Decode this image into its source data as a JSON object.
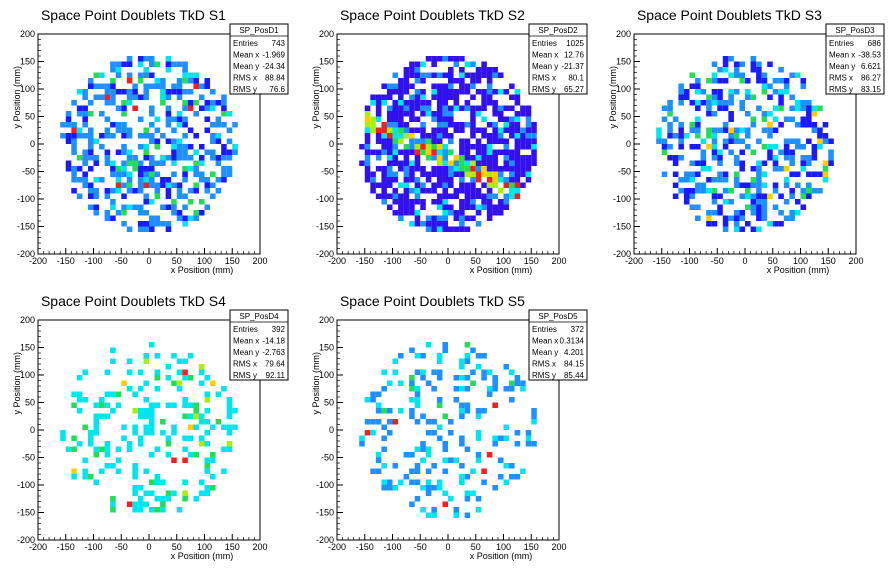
{
  "chart_data": [
    {
      "type": "heatmap",
      "title": "Space Point Doublets TkD S1",
      "xlabel": "x Position (mm)",
      "ylabel": "y Position (mm)",
      "xlim": [
        -200,
        200
      ],
      "ylim": [
        -200,
        200
      ],
      "xticks": [
        -200,
        -150,
        -100,
        -50,
        0,
        50,
        100,
        150,
        200
      ],
      "yticks": [
        -200,
        -150,
        -100,
        -50,
        0,
        50,
        100,
        150,
        200
      ],
      "grid": false,
      "colors": [
        "#1a1aff",
        "#1e90ff",
        "#00e5ee",
        "#22dd55",
        "#aaee11",
        "#ffcc00",
        "#ee2222"
      ],
      "stats": {
        "name": "SP_PosD1",
        "rows": [
          [
            "Entries",
            "743"
          ],
          [
            "Mean x",
            "-1.969"
          ],
          [
            "Mean y",
            "-24.34"
          ],
          [
            "RMS x",
            "88.84"
          ],
          [
            "RMS y",
            "76.6"
          ]
        ]
      },
      "region": {
        "shape": "disk",
        "radius": 160
      },
      "bin_size": 10,
      "band": null,
      "entries": 743,
      "palette": "blue"
    },
    {
      "type": "heatmap",
      "title": "Space Point Doublets TkD S2",
      "xlabel": "x Position (mm)",
      "ylabel": "y Position (mm)",
      "xlim": [
        -200,
        200
      ],
      "ylim": [
        -200,
        200
      ],
      "xticks": [
        -200,
        -150,
        -100,
        -50,
        0,
        50,
        100,
        150,
        200
      ],
      "yticks": [
        -200,
        -150,
        -100,
        -50,
        0,
        50,
        100,
        150,
        200
      ],
      "grid": false,
      "colors": [
        "#3311ee",
        "#1e90ff",
        "#00e5ee",
        "#22dd55",
        "#aaee11",
        "#ffcc00",
        "#ee2222"
      ],
      "stats": {
        "name": "SP_PosD2",
        "rows": [
          [
            "Entries",
            "1025"
          ],
          [
            "Mean x",
            "12.76"
          ],
          [
            "Mean y",
            "-21.37"
          ],
          [
            "RMS x",
            "80.1"
          ],
          [
            "RMS y",
            "65.27"
          ]
        ]
      },
      "region": {
        "shape": "disk",
        "radius": 160
      },
      "bin_size": 10,
      "band": {
        "from": [
          -150,
          45
        ],
        "to": [
          130,
          -90
        ]
      },
      "entries": 1025,
      "palette": "violet"
    },
    {
      "type": "heatmap",
      "title": "Space Point Doublets TkD S3",
      "xlabel": "x Position (mm)",
      "ylabel": "y Position (mm)",
      "xlim": [
        -200,
        200
      ],
      "ylim": [
        -200,
        200
      ],
      "xticks": [
        -200,
        -150,
        -100,
        -50,
        0,
        50,
        100,
        150,
        200
      ],
      "yticks": [
        -200,
        -150,
        -100,
        -50,
        0,
        50,
        100,
        150,
        200
      ],
      "grid": false,
      "colors": [
        "#1a1aff",
        "#1e90ff",
        "#00e5ee",
        "#22dd55",
        "#aaee11",
        "#ffcc00",
        "#ee2222"
      ],
      "stats": {
        "name": "SP_PosD3",
        "rows": [
          [
            "Entries",
            "686"
          ],
          [
            "Mean x",
            "-38.53"
          ],
          [
            "Mean y",
            "6.621"
          ],
          [
            "RMS x",
            "86.27"
          ],
          [
            "RMS y",
            "83.15"
          ]
        ]
      },
      "region": {
        "shape": "disk",
        "radius": 160
      },
      "bin_size": 10,
      "band": null,
      "entries": 686,
      "palette": "mixed"
    },
    {
      "type": "heatmap",
      "title": "Space Point Doublets TkD S4",
      "xlabel": "x Position (mm)",
      "ylabel": "y Position (mm)",
      "xlim": [
        -200,
        200
      ],
      "ylim": [
        -200,
        200
      ],
      "xticks": [
        -200,
        -150,
        -100,
        -50,
        0,
        50,
        100,
        150,
        200
      ],
      "yticks": [
        -200,
        -150,
        -100,
        -50,
        0,
        50,
        100,
        150,
        200
      ],
      "grid": false,
      "colors": [
        "#00e5ee",
        "#22dd55",
        "#aaee11",
        "#ffcc00",
        "#ee2222"
      ],
      "stats": {
        "name": "SP_PosD4",
        "rows": [
          [
            "Entries",
            "392"
          ],
          [
            "Mean x",
            "-14.18"
          ],
          [
            "Mean y",
            "-2.763"
          ],
          [
            "RMS x",
            "79.64"
          ],
          [
            "RMS y",
            "92.11"
          ]
        ]
      },
      "region": {
        "shape": "disk",
        "radius": 160
      },
      "bin_size": 10,
      "band": null,
      "entries": 392,
      "palette": "cyan"
    },
    {
      "type": "heatmap",
      "title": "Space Point Doublets TkD S5",
      "xlabel": "x Position (mm)",
      "ylabel": "y Position (mm)",
      "xlim": [
        -200,
        200
      ],
      "ylim": [
        -200,
        200
      ],
      "xticks": [
        -200,
        -150,
        -100,
        -50,
        0,
        50,
        100,
        150,
        200
      ],
      "yticks": [
        -200,
        -150,
        -100,
        -50,
        0,
        50,
        100,
        150,
        200
      ],
      "grid": false,
      "colors": [
        "#1e90ff",
        "#00e5ee",
        "#22dd55",
        "#aaee11",
        "#ee2222"
      ],
      "stats": {
        "name": "SP_PosD5",
        "rows": [
          [
            "Entries",
            "372"
          ],
          [
            "Mean x",
            "0.3134"
          ],
          [
            "Mean y",
            "4.201"
          ],
          [
            "RMS x",
            "84.15"
          ],
          [
            "RMS y",
            "85.44"
          ]
        ]
      },
      "region": {
        "shape": "disk",
        "radius": 160
      },
      "bin_size": 10,
      "band": null,
      "entries": 372,
      "palette": "blue"
    }
  ]
}
